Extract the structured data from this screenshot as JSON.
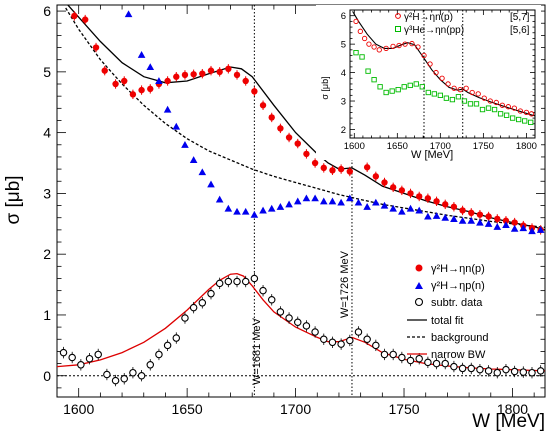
{
  "chart_data": [
    {
      "type": "scatter",
      "xlabel": "W [MeV]",
      "ylabel": "σ [μb]",
      "xlim": [
        1590,
        1815
      ],
      "ylim": [
        -0.35,
        6.1
      ],
      "xticks": [
        1600,
        1650,
        1700,
        1750,
        1800
      ],
      "yticks": [
        0,
        1,
        2,
        3,
        4,
        5,
        6
      ],
      "grid": false,
      "legend_position": "lower-right",
      "annotations": [
        {
          "x": 1681,
          "text": "W=1681 MeV"
        },
        {
          "x": 1726,
          "text": "W=1726 MeV"
        }
      ],
      "series": [
        {
          "name": "γ²H→ηn(p)",
          "marker": "filled-circle",
          "color": "#ee0000",
          "x": [
            1598,
            1603,
            1608,
            1612,
            1617,
            1621,
            1625,
            1629,
            1633,
            1637,
            1641,
            1645,
            1649,
            1653,
            1657,
            1661,
            1665,
            1669,
            1673,
            1677,
            1681,
            1685,
            1689,
            1693,
            1697,
            1701,
            1705,
            1709,
            1713,
            1717,
            1721,
            1725,
            1729,
            1733,
            1737,
            1741,
            1745,
            1749,
            1753,
            1757,
            1761,
            1765,
            1769,
            1773,
            1777,
            1781,
            1785,
            1789,
            1793,
            1797,
            1801,
            1805,
            1809,
            1813
          ],
          "y": [
            5.92,
            5.86,
            5.4,
            5.02,
            4.8,
            4.85,
            4.63,
            4.7,
            4.72,
            4.8,
            4.85,
            4.92,
            4.95,
            4.96,
            4.97,
            5.02,
            5.0,
            5.05,
            4.95,
            4.85,
            4.68,
            4.45,
            4.25,
            4.07,
            3.92,
            3.82,
            3.65,
            3.5,
            3.42,
            3.38,
            3.4,
            3.36,
            3.68,
            3.43,
            3.28,
            3.18,
            3.1,
            3.05,
            3.0,
            2.95,
            2.92,
            2.87,
            2.82,
            2.78,
            2.72,
            2.68,
            2.65,
            2.62,
            2.58,
            2.55,
            2.52,
            2.47,
            2.43,
            2.4
          ]
        },
        {
          "name": "γ²H→ηp(n)",
          "marker": "filled-triangle",
          "color": "#0000ee",
          "x": [
            1623,
            1629,
            1633,
            1637,
            1641,
            1645,
            1649,
            1653,
            1657,
            1661,
            1665,
            1669,
            1673,
            1677,
            1681,
            1685,
            1689,
            1693,
            1697,
            1701,
            1705,
            1709,
            1713,
            1717,
            1721,
            1725,
            1729,
            1733,
            1737,
            1741,
            1745,
            1749,
            1753,
            1757,
            1761,
            1765,
            1769,
            1773,
            1777,
            1781,
            1785,
            1789,
            1793,
            1797,
            1801,
            1805,
            1809,
            1813
          ],
          "y": [
            5.95,
            5.28,
            5.08,
            4.85,
            4.38,
            4.1,
            3.8,
            3.55,
            3.35,
            3.15,
            2.9,
            2.75,
            2.7,
            2.7,
            2.65,
            2.72,
            2.75,
            2.78,
            2.82,
            2.87,
            2.92,
            2.92,
            2.87,
            2.87,
            2.85,
            2.92,
            2.85,
            2.78,
            2.85,
            2.8,
            2.75,
            2.7,
            2.75,
            2.72,
            2.62,
            2.63,
            2.6,
            2.58,
            2.55,
            2.55,
            2.52,
            2.5,
            2.45,
            2.48,
            2.42,
            2.43,
            2.38,
            2.4
          ]
        },
        {
          "name": "subtr. data",
          "marker": "open-circle",
          "color": "#000000",
          "x": [
            1593,
            1597,
            1601,
            1605,
            1609,
            1613,
            1617,
            1621,
            1625,
            1629,
            1633,
            1637,
            1641,
            1645,
            1649,
            1653,
            1657,
            1661,
            1665,
            1669,
            1673,
            1677,
            1681,
            1685,
            1689,
            1693,
            1697,
            1701,
            1705,
            1709,
            1713,
            1717,
            1721,
            1725,
            1729,
            1733,
            1737,
            1741,
            1745,
            1749,
            1753,
            1757,
            1761,
            1765,
            1769,
            1773,
            1777,
            1781,
            1785,
            1789,
            1793,
            1797,
            1801,
            1805,
            1809,
            1813
          ],
          "y": [
            0.38,
            0.3,
            0.18,
            0.28,
            0.35,
            0.02,
            -0.08,
            -0.05,
            0.05,
            0.0,
            0.18,
            0.35,
            0.5,
            0.62,
            0.95,
            1.12,
            1.2,
            1.35,
            1.52,
            1.55,
            1.55,
            1.55,
            1.6,
            1.4,
            1.25,
            1.05,
            0.95,
            0.88,
            0.82,
            0.72,
            0.6,
            0.55,
            0.52,
            0.58,
            0.72,
            0.6,
            0.5,
            0.35,
            0.35,
            0.3,
            0.25,
            0.28,
            0.22,
            0.2,
            0.2,
            0.15,
            0.12,
            0.12,
            0.1,
            0.08,
            0.05,
            0.1,
            0.07,
            0.06,
            0.05,
            0.08
          ]
        },
        {
          "name": "total fit",
          "marker": "line",
          "style": "solid",
          "color": "#000000",
          "x": [
            1590,
            1600,
            1610,
            1620,
            1630,
            1640,
            1650,
            1660,
            1670,
            1675,
            1680,
            1690,
            1700,
            1710,
            1715,
            1720,
            1726,
            1732,
            1740,
            1750,
            1760,
            1770,
            1780,
            1790,
            1800,
            1810,
            1815
          ],
          "y": [
            6.3,
            5.9,
            5.5,
            5.15,
            4.92,
            4.82,
            4.85,
            4.97,
            5.08,
            5.05,
            4.92,
            4.45,
            4.0,
            3.65,
            3.5,
            3.4,
            3.42,
            3.3,
            3.12,
            3.0,
            2.88,
            2.78,
            2.7,
            2.6,
            2.52,
            2.45,
            2.4
          ]
        },
        {
          "name": "background",
          "marker": "line",
          "style": "dashed",
          "color": "#000000",
          "x": [
            1594,
            1600,
            1610,
            1620,
            1630,
            1640,
            1650,
            1660,
            1670,
            1680,
            1690,
            1700,
            1710,
            1720,
            1730,
            1740,
            1750,
            1760,
            1770,
            1780,
            1790,
            1800,
            1810,
            1815
          ],
          "y": [
            6.05,
            5.7,
            5.2,
            4.8,
            4.45,
            4.15,
            3.9,
            3.7,
            3.55,
            3.4,
            3.28,
            3.18,
            3.08,
            2.98,
            2.9,
            2.82,
            2.76,
            2.7,
            2.64,
            2.59,
            2.54,
            2.5,
            2.46,
            2.44
          ]
        },
        {
          "name": "narrow BW",
          "marker": "line",
          "style": "solid",
          "color": "#dd0000",
          "x": [
            1590,
            1600,
            1610,
            1620,
            1630,
            1640,
            1650,
            1660,
            1665,
            1670,
            1673,
            1676,
            1680,
            1685,
            1690,
            1700,
            1710,
            1715,
            1720,
            1726,
            1732,
            1740,
            1750,
            1760,
            1770,
            1780,
            1790,
            1800,
            1815
          ],
          "y": [
            0.15,
            0.18,
            0.26,
            0.38,
            0.55,
            0.78,
            1.08,
            1.42,
            1.57,
            1.67,
            1.68,
            1.64,
            1.48,
            1.25,
            1.05,
            0.8,
            0.63,
            0.56,
            0.56,
            0.63,
            0.55,
            0.38,
            0.27,
            0.2,
            0.16,
            0.13,
            0.11,
            0.1,
            0.08
          ]
        }
      ]
    },
    {
      "type": "scatter",
      "inset": true,
      "xlabel": "W [MeV]",
      "ylabel": "σ [μb]",
      "xlim": [
        1595,
        1810
      ],
      "ylim": [
        1.7,
        6.2
      ],
      "xticks": [
        1600,
        1650,
        1700,
        1750,
        1800
      ],
      "yticks": [
        2,
        3,
        4,
        5,
        6
      ],
      "vlines": [
        1681,
        1726
      ],
      "legend_position": "top-right",
      "series": [
        {
          "name": "γ²H→ηn(p)",
          "ref": "[5,7]",
          "marker": "open-circle",
          "color": "#ee0000",
          "x": [
            1602,
            1607,
            1612,
            1617,
            1623,
            1629,
            1637,
            1645,
            1652,
            1659,
            1667,
            1674,
            1681,
            1688,
            1695,
            1702,
            1709,
            1716,
            1723,
            1730,
            1737,
            1744,
            1751,
            1758,
            1765,
            1772,
            1779,
            1786,
            1793,
            1800,
            1806
          ],
          "y": [
            5.8,
            5.45,
            5.2,
            5.0,
            4.9,
            4.8,
            4.85,
            4.92,
            4.95,
            5.0,
            5.02,
            4.9,
            4.6,
            4.3,
            4.0,
            3.8,
            3.6,
            3.45,
            3.4,
            3.45,
            3.3,
            3.25,
            3.1,
            3.0,
            2.95,
            2.85,
            2.8,
            2.75,
            2.65,
            2.6,
            2.55
          ]
        },
        {
          "name": "γ³He→ηn(pp)",
          "ref": "[5,6]",
          "marker": "open-square",
          "color": "#00bb00",
          "x": [
            1602,
            1609,
            1616,
            1623,
            1630,
            1637,
            1644,
            1651,
            1658,
            1665,
            1672,
            1679,
            1686,
            1693,
            1700,
            1707,
            1714,
            1721,
            1728,
            1735,
            1742,
            1749,
            1756,
            1763,
            1770,
            1777,
            1784,
            1791,
            1798,
            1805
          ],
          "y": [
            4.7,
            4.55,
            4.05,
            3.75,
            3.5,
            3.3,
            3.35,
            3.4,
            3.5,
            3.55,
            3.6,
            3.5,
            3.3,
            3.25,
            3.2,
            3.1,
            3.05,
            3.15,
            3.0,
            2.9,
            2.9,
            2.7,
            2.75,
            2.7,
            2.55,
            2.5,
            2.4,
            2.35,
            2.3,
            2.25
          ]
        },
        {
          "name": "fit",
          "marker": "line",
          "style": "solid",
          "color": "#000000",
          "x": [
            1598,
            1605,
            1615,
            1625,
            1635,
            1645,
            1655,
            1662,
            1670,
            1680,
            1690,
            1700,
            1710,
            1720,
            1726,
            1732,
            1745,
            1760,
            1775,
            1790,
            1805,
            1810
          ],
          "y": [
            6.15,
            5.8,
            5.35,
            5.0,
            4.85,
            4.85,
            4.98,
            5.05,
            4.98,
            4.55,
            4.1,
            3.75,
            3.48,
            3.38,
            3.42,
            3.3,
            3.12,
            2.95,
            2.8,
            2.66,
            2.52,
            2.48
          ]
        }
      ]
    }
  ]
}
